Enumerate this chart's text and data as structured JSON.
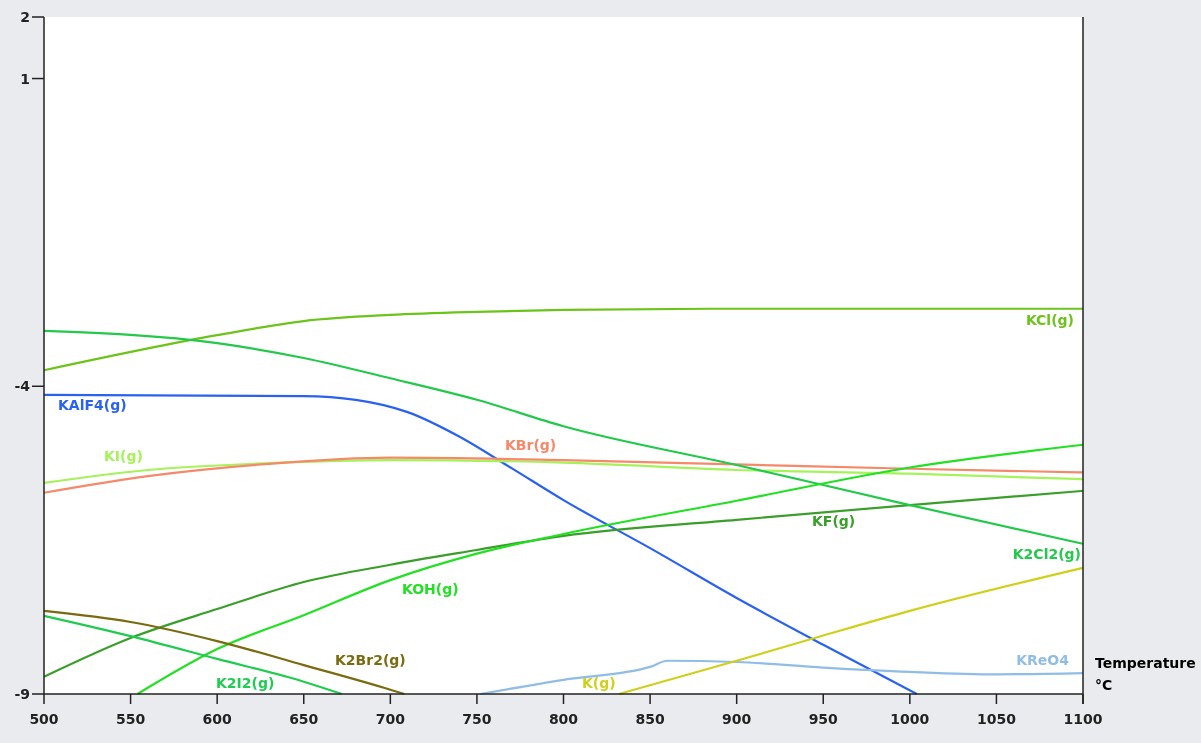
{
  "chart_data": {
    "type": "line",
    "xlabel": "Temperature\n°C",
    "xlim": [
      500,
      1100
    ],
    "ylim": [
      -9,
      2
    ],
    "xticks": [
      500,
      550,
      600,
      650,
      700,
      750,
      800,
      850,
      900,
      950,
      1000,
      1050,
      1100
    ],
    "yticks": [
      -9,
      -4,
      1,
      2
    ],
    "grid": false,
    "marker": "none",
    "line_style": "solid",
    "series": [
      {
        "name": "KCl(g)",
        "color": "#6cc31a",
        "x": [
          500,
          600,
          650,
          700,
          750,
          800,
          900,
          1100
        ],
        "values": [
          -3.74,
          -3.17,
          -2.94,
          -2.84,
          -2.79,
          -2.76,
          -2.74,
          -2.74
        ]
      },
      {
        "name": "KAlF4(g)",
        "color": "#2a62f0",
        "x": [
          500,
          650,
          680,
          710,
          740,
          770,
          800,
          850,
          900,
          950,
          1004
        ],
        "values": [
          -4.14,
          -4.16,
          -4.22,
          -4.42,
          -4.82,
          -5.33,
          -5.85,
          -6.63,
          -7.44,
          -8.2,
          -9
        ]
      },
      {
        "name": "KI(g)",
        "color": "#a6f25a",
        "x": [
          500,
          560,
          630,
          700,
          800,
          900,
          1000,
          1100
        ],
        "values": [
          -5.57,
          -5.36,
          -5.25,
          -5.2,
          -5.24,
          -5.36,
          -5.42,
          -5.51
        ]
      },
      {
        "name": "KBr(g)",
        "color": "#f5896a",
        "x": [
          500,
          560,
          630,
          700,
          800,
          900,
          1000,
          1100
        ],
        "values": [
          -5.73,
          -5.46,
          -5.26,
          -5.16,
          -5.2,
          -5.27,
          -5.34,
          -5.4
        ]
      },
      {
        "name": "KF(g)",
        "color": "#3a9f2a",
        "x": [
          500,
          550,
          600,
          650,
          700,
          750,
          800,
          900,
          1000,
          1100
        ],
        "values": [
          -8.72,
          -8.09,
          -7.62,
          -7.18,
          -6.9,
          -6.66,
          -6.43,
          -6.17,
          -5.93,
          -5.7
        ]
      },
      {
        "name": "K2Cl2(g)",
        "color": "#22c94a",
        "x": [
          500,
          600,
          650,
          700,
          750,
          800,
          900,
          1000,
          1100
        ],
        "values": [
          -3.1,
          -3.3,
          -3.54,
          -3.87,
          -4.22,
          -4.65,
          -5.28,
          -5.93,
          -6.56
        ]
      },
      {
        "name": "KOH(g)",
        "color": "#22e022",
        "x": [
          554,
          600,
          650,
          700,
          750,
          800,
          900,
          1000,
          1100
        ],
        "values": [
          -9,
          -8.27,
          -7.72,
          -7.15,
          -6.72,
          -6.4,
          -5.86,
          -5.32,
          -4.95
        ]
      },
      {
        "name": "K2Br2(g)",
        "color": "#7a6a10",
        "x": [
          500,
          550,
          600,
          650,
          700,
          708
        ],
        "values": [
          -7.65,
          -7.83,
          -8.14,
          -8.53,
          -8.93,
          -9
        ]
      },
      {
        "name": "K2I2(g)",
        "color": "#20cc50",
        "x": [
          500,
          550,
          600,
          650,
          672
        ],
        "values": [
          -7.73,
          -8.06,
          -8.43,
          -8.8,
          -9
        ]
      },
      {
        "name": "KReO4",
        "color": "#8fbde6",
        "x": [
          752,
          800,
          850,
          860,
          900,
          950,
          1000,
          1050,
          1100
        ],
        "values": [
          -9,
          -8.77,
          -8.56,
          -8.46,
          -8.48,
          -8.57,
          -8.64,
          -8.68,
          -8.66
        ]
      },
      {
        "name": "K(g)",
        "color": "#cfd01c",
        "x": [
          832,
          900,
          950,
          1000,
          1100
        ],
        "values": [
          -9,
          -8.46,
          -8.05,
          -7.65,
          -6.95
        ]
      }
    ]
  }
}
